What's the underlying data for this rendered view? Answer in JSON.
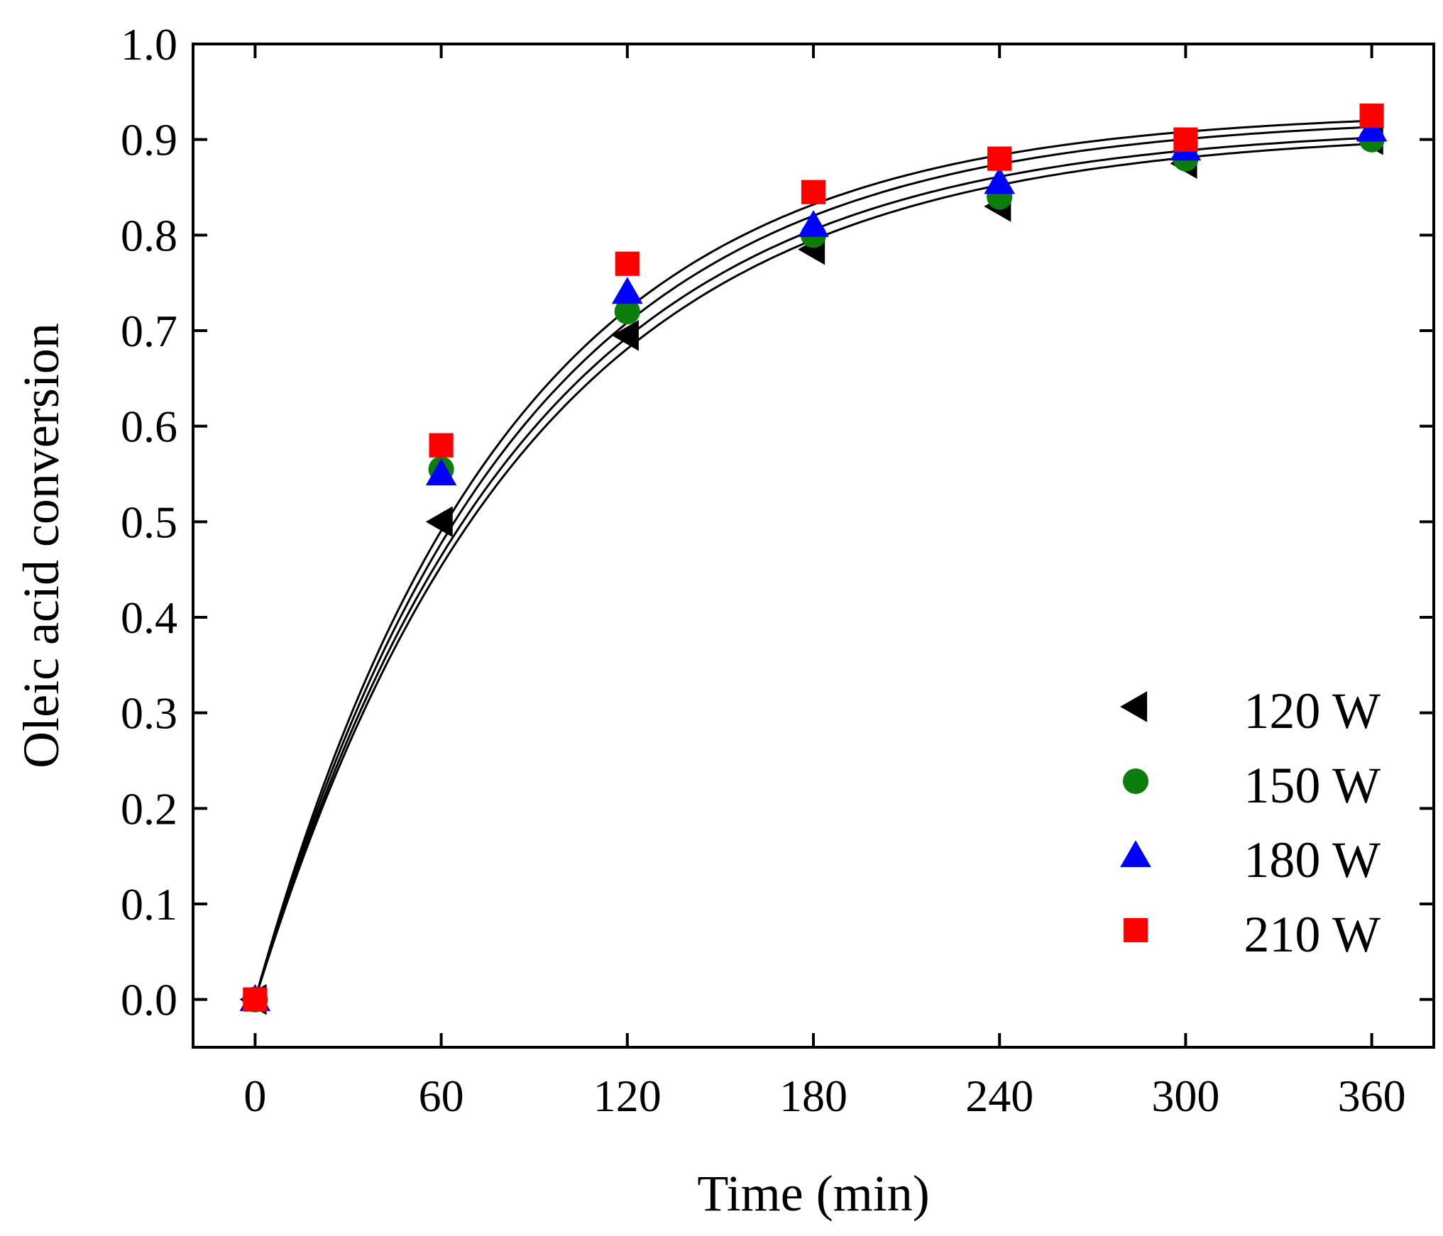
{
  "chart_data": {
    "type": "scatter",
    "title": "",
    "xlabel": "Time (min)",
    "ylabel": "Oleic acid conversion",
    "xlim": [
      -20,
      380
    ],
    "ylim": [
      -0.05,
      1.0
    ],
    "xticks": [
      0,
      60,
      120,
      180,
      240,
      300,
      360
    ],
    "yticks": [
      0.0,
      0.1,
      0.2,
      0.3,
      0.4,
      0.5,
      0.6,
      0.7,
      0.8,
      0.9,
      1.0
    ],
    "ytick_labels": [
      "0.0",
      "0.1",
      "0.2",
      "0.3",
      "0.4",
      "0.5",
      "0.6",
      "0.7",
      "0.8",
      "0.9",
      "1.0"
    ],
    "grid": false,
    "legend_position": "bottom-right",
    "x": [
      0,
      60,
      120,
      180,
      240,
      300,
      360
    ],
    "series": [
      {
        "name": "120 W",
        "marker": "triangle-left",
        "color": "#000000",
        "values": [
          0.0,
          0.5,
          0.695,
          0.785,
          0.83,
          0.875,
          0.9
        ],
        "fit": {
          "a": 0.91,
          "k": 0.0115
        }
      },
      {
        "name": "150 W",
        "marker": "circle",
        "color": "#0a7d0a",
        "values": [
          0.0,
          0.555,
          0.72,
          0.8,
          0.84,
          0.88,
          0.9
        ],
        "fit": {
          "a": 0.915,
          "k": 0.0118
        }
      },
      {
        "name": "180 W",
        "marker": "triangle-up",
        "color": "#0000ff",
        "values": [
          0.0,
          0.55,
          0.74,
          0.81,
          0.855,
          0.89,
          0.91
        ],
        "fit": {
          "a": 0.925,
          "k": 0.0121
        }
      },
      {
        "name": "210 W",
        "marker": "square",
        "color": "#ff0000",
        "values": [
          0.0,
          0.58,
          0.77,
          0.845,
          0.88,
          0.9,
          0.925
        ],
        "fit": {
          "a": 0.93,
          "k": 0.0125
        }
      }
    ]
  }
}
